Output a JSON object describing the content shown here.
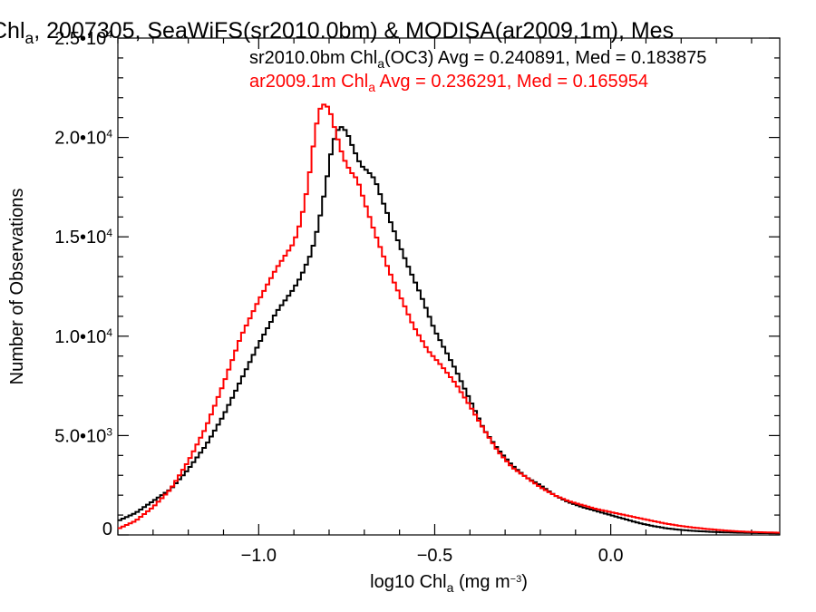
{
  "chart_data": {
    "type": "line",
    "title_segments": [
      {
        "text": "Chl",
        "sub": false
      },
      {
        "text": "a",
        "sub": true
      },
      {
        "text": ", 2007305, SeaWiFS(sr2010.0bm) & MODISA(ar2009.1m), Mes",
        "sub": false
      }
    ],
    "xlabel_segments": [
      {
        "text": "log10 Chl",
        "kind": "normal"
      },
      {
        "text": "a",
        "kind": "sub"
      },
      {
        "text": " (mg m",
        "kind": "normal"
      },
      {
        "text": "−3",
        "kind": "sup"
      },
      {
        "text": ")",
        "kind": "normal"
      }
    ],
    "ylabel": "Number of Observations",
    "xlim": [
      -1.4,
      0.48
    ],
    "ylim": [
      0,
      25000
    ],
    "x_ticks": [
      {
        "value": -1.0,
        "label": "−1.0"
      },
      {
        "value": -0.5,
        "label": "−0.5"
      },
      {
        "value": 0.0,
        "label": "0.0"
      }
    ],
    "x_minor_step": 0.1,
    "y_ticks": [
      {
        "value": 0,
        "mantissa": "0",
        "exp": ""
      },
      {
        "value": 5000,
        "mantissa": "5.0•10",
        "exp": "3"
      },
      {
        "value": 10000,
        "mantissa": "1.0•10",
        "exp": "4"
      },
      {
        "value": 15000,
        "mantissa": "1.5•10",
        "exp": "4"
      },
      {
        "value": 20000,
        "mantissa": "2.0•10",
        "exp": "4"
      },
      {
        "value": 25000,
        "mantissa": "2.5•10",
        "exp": "4"
      }
    ],
    "y_minor_step": 1000,
    "grid": false,
    "step_width": 0.01,
    "series": [
      {
        "name_segments": [
          {
            "text": "sr2010.0bm Chl",
            "sub": false
          },
          {
            "text": "a",
            "sub": true
          },
          {
            "text": "(OC3) Avg = 0.240891, Med = 0.183875",
            "sub": false
          }
        ],
        "color": "#000000",
        "points": [
          [
            -1.4,
            700
          ],
          [
            -1.35,
            1100
          ],
          [
            -1.3,
            1700
          ],
          [
            -1.25,
            2300
          ],
          [
            -1.2,
            3300
          ],
          [
            -1.15,
            4500
          ],
          [
            -1.1,
            6000
          ],
          [
            -1.05,
            7800
          ],
          [
            -1.0,
            9600
          ],
          [
            -0.95,
            11200
          ],
          [
            -0.9,
            12400
          ],
          [
            -0.88,
            13000
          ],
          [
            -0.85,
            14200
          ],
          [
            -0.83,
            15600
          ],
          [
            -0.81,
            17500
          ],
          [
            -0.79,
            19700
          ],
          [
            -0.77,
            20600
          ],
          [
            -0.75,
            20300
          ],
          [
            -0.73,
            19400
          ],
          [
            -0.71,
            18600
          ],
          [
            -0.69,
            18300
          ],
          [
            -0.67,
            17900
          ],
          [
            -0.65,
            16900
          ],
          [
            -0.62,
            15500
          ],
          [
            -0.58,
            13700
          ],
          [
            -0.54,
            12100
          ],
          [
            -0.5,
            10300
          ],
          [
            -0.47,
            9300
          ],
          [
            -0.44,
            8300
          ],
          [
            -0.4,
            6800
          ],
          [
            -0.36,
            5300
          ],
          [
            -0.32,
            4300
          ],
          [
            -0.28,
            3500
          ],
          [
            -0.24,
            2900
          ],
          [
            -0.2,
            2500
          ],
          [
            -0.16,
            2000
          ],
          [
            -0.12,
            1650
          ],
          [
            -0.08,
            1400
          ],
          [
            -0.04,
            1200
          ],
          [
            0.0,
            1000
          ],
          [
            0.04,
            800
          ],
          [
            0.08,
            600
          ],
          [
            0.12,
            450
          ],
          [
            0.16,
            330
          ],
          [
            0.2,
            250
          ],
          [
            0.24,
            200
          ],
          [
            0.28,
            160
          ],
          [
            0.32,
            130
          ],
          [
            0.36,
            110
          ],
          [
            0.4,
            100
          ],
          [
            0.44,
            90
          ],
          [
            0.48,
            80
          ]
        ]
      },
      {
        "name_segments": [
          {
            "text": "ar2009.1m Chl",
            "sub": false
          },
          {
            "text": "a",
            "sub": true
          },
          {
            "text": " Avg = 0.236291, Med = 0.165954",
            "sub": false
          }
        ],
        "color": "#ff0000",
        "points": [
          [
            -1.4,
            300
          ],
          [
            -1.35,
            700
          ],
          [
            -1.3,
            1400
          ],
          [
            -1.25,
            2300
          ],
          [
            -1.2,
            3700
          ],
          [
            -1.15,
            5400
          ],
          [
            -1.1,
            7600
          ],
          [
            -1.05,
            10000
          ],
          [
            -1.0,
            11800
          ],
          [
            -0.95,
            13400
          ],
          [
            -0.9,
            14700
          ],
          [
            -0.88,
            15800
          ],
          [
            -0.86,
            17600
          ],
          [
            -0.84,
            20200
          ],
          [
            -0.83,
            21200
          ],
          [
            -0.82,
            21700
          ],
          [
            -0.8,
            21500
          ],
          [
            -0.78,
            20200
          ],
          [
            -0.76,
            19000
          ],
          [
            -0.74,
            18300
          ],
          [
            -0.72,
            17900
          ],
          [
            -0.7,
            16800
          ],
          [
            -0.67,
            15200
          ],
          [
            -0.63,
            13300
          ],
          [
            -0.6,
            12100
          ],
          [
            -0.56,
            10500
          ],
          [
            -0.52,
            9300
          ],
          [
            -0.48,
            8500
          ],
          [
            -0.44,
            7600
          ],
          [
            -0.4,
            6500
          ],
          [
            -0.36,
            5300
          ],
          [
            -0.32,
            4200
          ],
          [
            -0.28,
            3400
          ],
          [
            -0.24,
            2900
          ],
          [
            -0.2,
            2400
          ],
          [
            -0.16,
            2000
          ],
          [
            -0.12,
            1700
          ],
          [
            -0.08,
            1500
          ],
          [
            -0.04,
            1300
          ],
          [
            0.0,
            1150
          ],
          [
            0.04,
            1000
          ],
          [
            0.08,
            850
          ],
          [
            0.12,
            700
          ],
          [
            0.16,
            560
          ],
          [
            0.2,
            450
          ],
          [
            0.24,
            360
          ],
          [
            0.28,
            290
          ],
          [
            0.32,
            230
          ],
          [
            0.36,
            180
          ],
          [
            0.4,
            150
          ],
          [
            0.44,
            130
          ],
          [
            0.48,
            110
          ]
        ]
      }
    ]
  }
}
